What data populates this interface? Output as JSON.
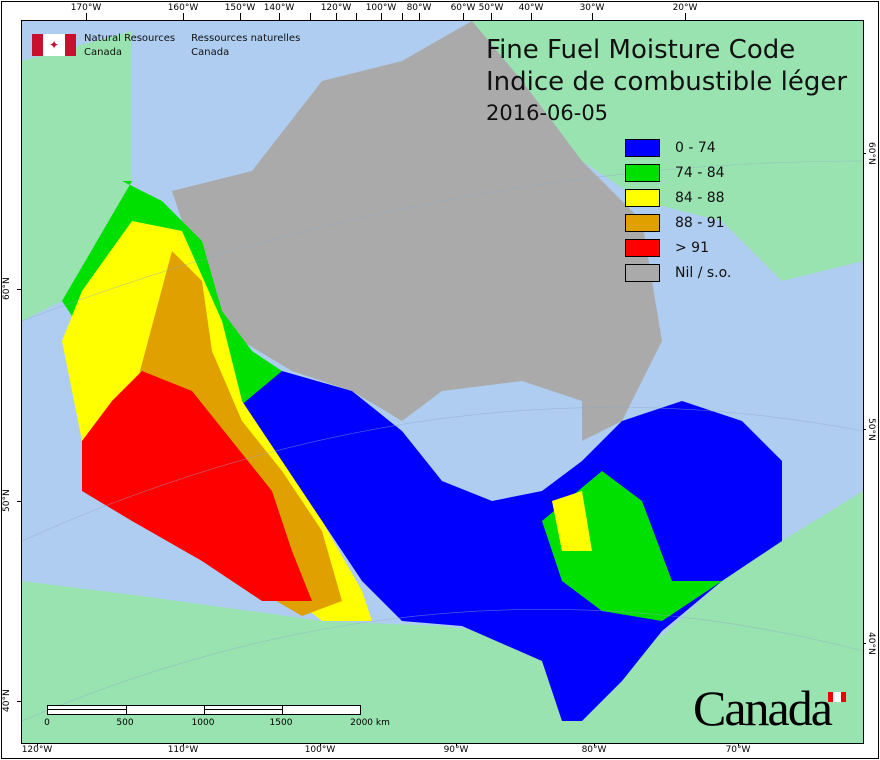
{
  "header": {
    "agency_en_line1": "Natural Resources",
    "agency_en_line2": "Canada",
    "agency_fr_line1": "Ressources naturelles",
    "agency_fr_line2": "Canada"
  },
  "title": {
    "en": "Fine Fuel Moisture Code",
    "fr": "Indice de combustible léger",
    "date": "2016-06-05"
  },
  "legend": [
    {
      "label": "0 - 74",
      "color": "#0000ff"
    },
    {
      "label": "74 - 84",
      "color": "#00e000"
    },
    {
      "label": "84 - 88",
      "color": "#ffff00"
    },
    {
      "label": "88 - 91",
      "color": "#e0a000"
    },
    {
      "label": "> 91",
      "color": "#ff0000"
    },
    {
      "label": "Nil / s.o.",
      "color": "#aaaaaa"
    }
  ],
  "axes": {
    "top": [
      "170°W",
      "160°W",
      "150°W",
      "140°W",
      "120°W",
      "100°W",
      "80°W",
      "60°W",
      "50°W",
      "40°W",
      "30°W",
      "20°W"
    ],
    "bottom": [
      "120°W",
      "110°W",
      "100°W",
      "90°W",
      "80°W",
      "70°W"
    ],
    "left": [
      "60°N",
      "50°N",
      "40°N"
    ],
    "right": [
      "60°N",
      "50°N",
      "40°N"
    ]
  },
  "scale_bar": {
    "labels": [
      "0",
      "500",
      "1000",
      "1500",
      "2000 km"
    ]
  },
  "wordmark": "Canada",
  "colors": {
    "ocean": "#aecdf0",
    "land": "#98e3b0",
    "nodata": "#aaaaaa"
  }
}
